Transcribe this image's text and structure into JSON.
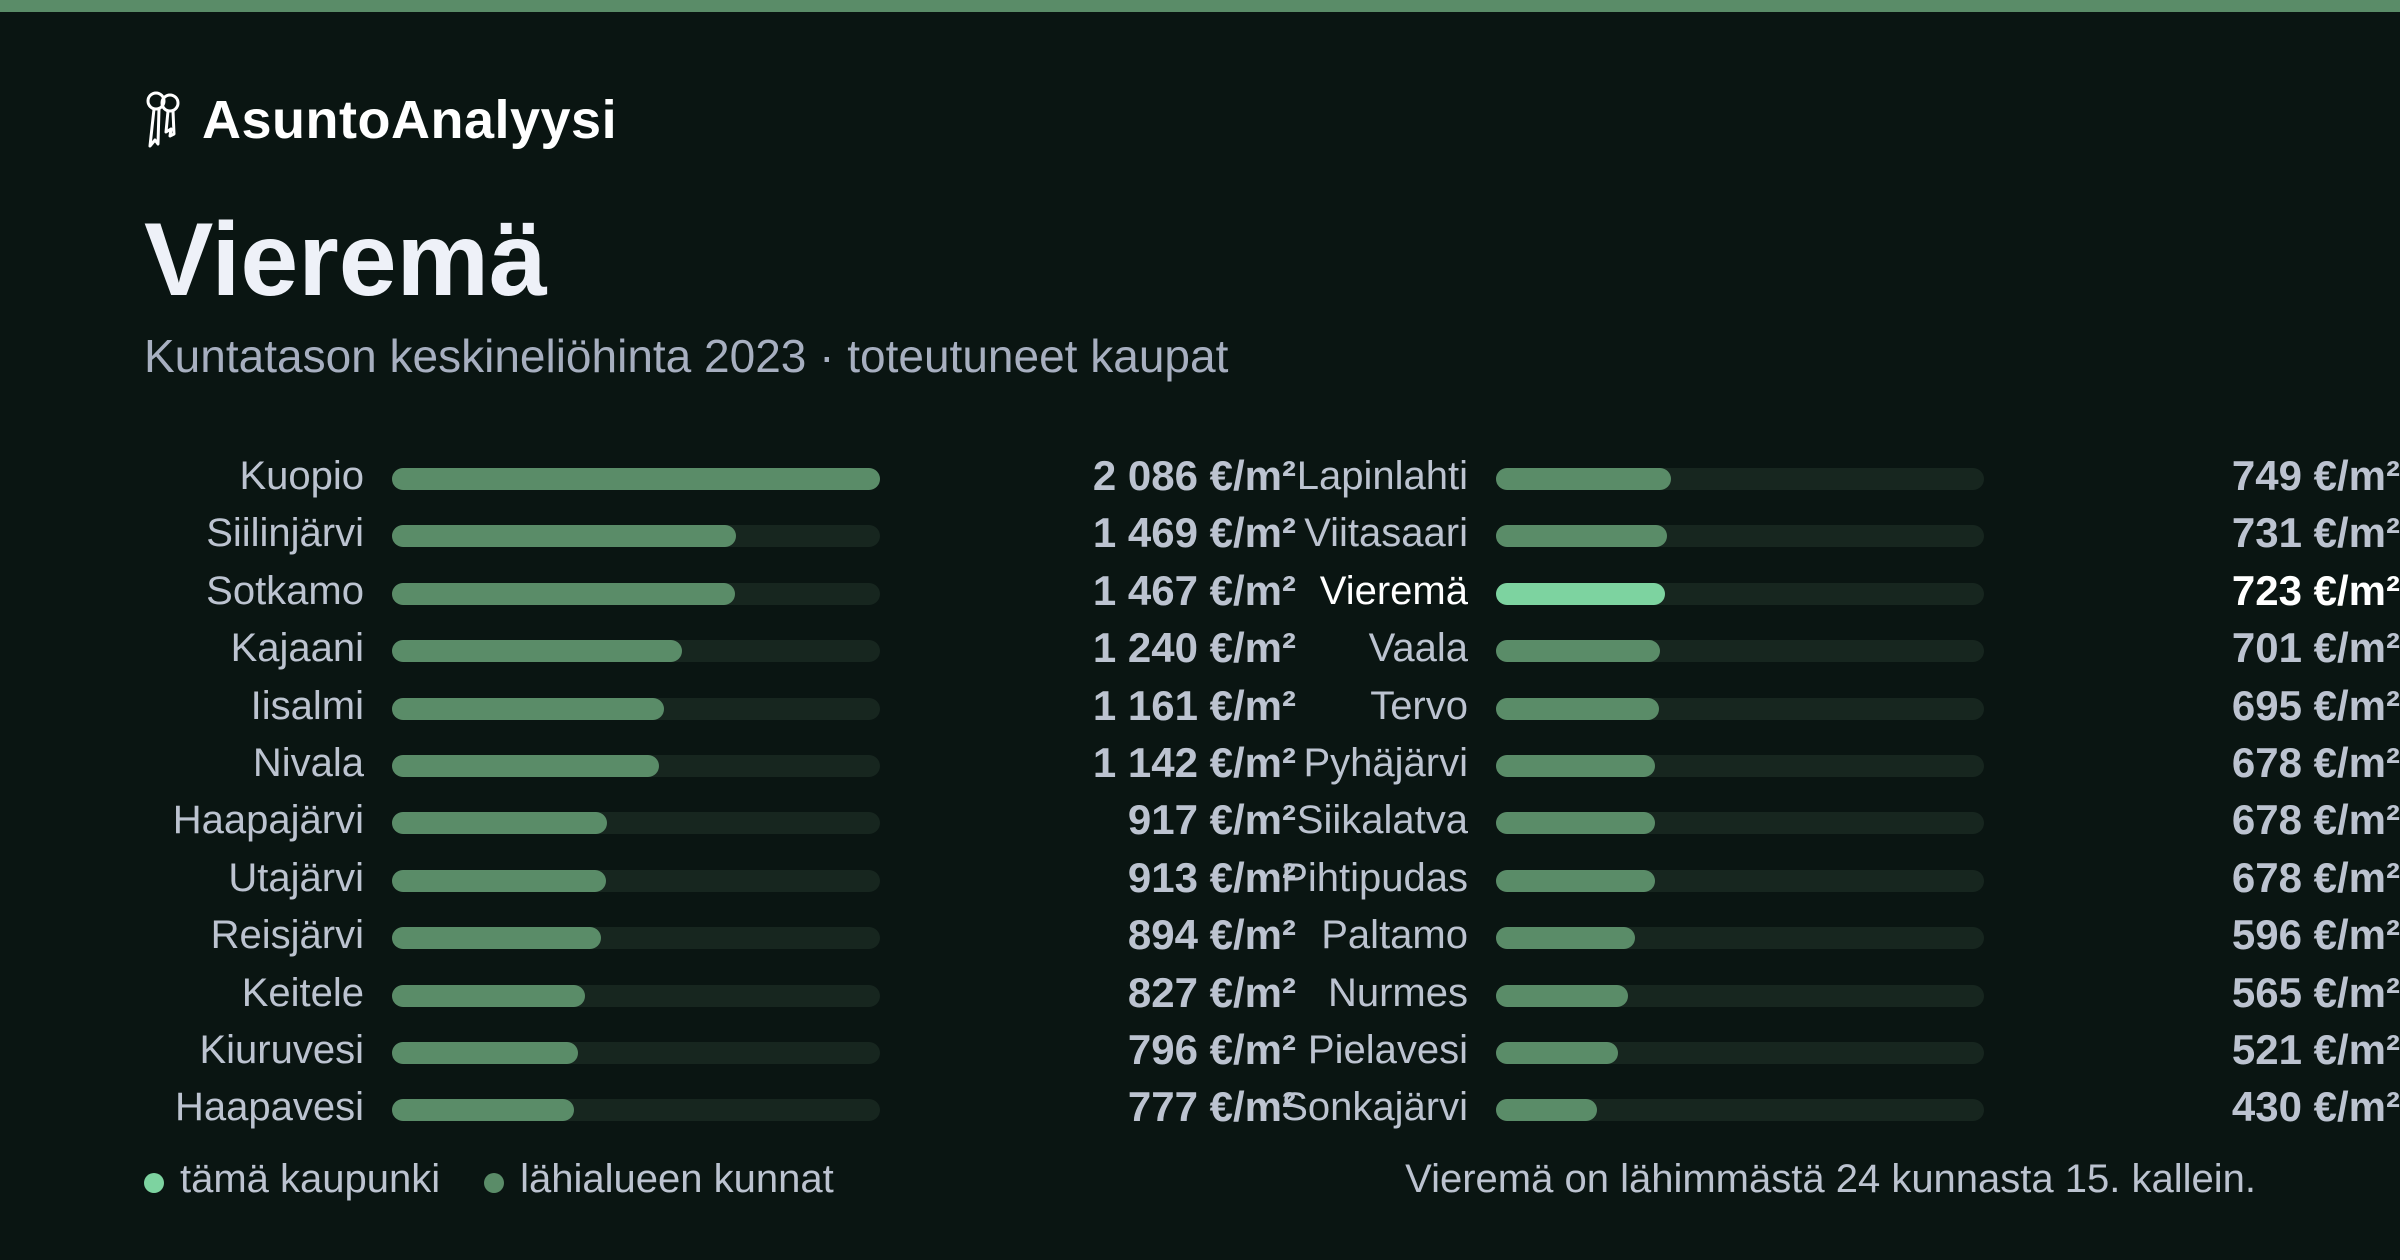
{
  "brand": {
    "name": "AsuntoAnalyysi",
    "icon": "keys-icon"
  },
  "header": {
    "title": "Vieremä",
    "subtitle": "Kuntatason keskineliöhinta 2023 · toteutuneet kaupat"
  },
  "colors": {
    "background": "#0a1512",
    "accent": "#5a8c68",
    "highlight": "#7dd3a0",
    "track": "#17261f",
    "text_muted": "#bcc3d0"
  },
  "chart_data": {
    "type": "bar",
    "orientation": "horizontal",
    "unit": "€/m²",
    "xlim": [
      0,
      2086
    ],
    "highlight": "Vieremä",
    "categories": [
      "Kuopio",
      "Siilinjärvi",
      "Sotkamo",
      "Kajaani",
      "Iisalmi",
      "Nivala",
      "Haapajärvi",
      "Utajärvi",
      "Reisjärvi",
      "Keitele",
      "Kiuruvesi",
      "Haapavesi",
      "Lapinlahti",
      "Viitasaari",
      "Vieremä",
      "Vaala",
      "Tervo",
      "Pyhäjärvi",
      "Siikalatva",
      "Pihtipudas",
      "Paltamo",
      "Nurmes",
      "Pielavesi",
      "Sonkajärvi"
    ],
    "values": [
      2086,
      1469,
      1467,
      1240,
      1161,
      1142,
      917,
      913,
      894,
      827,
      796,
      777,
      749,
      731,
      723,
      701,
      695,
      678,
      678,
      678,
      596,
      565,
      521,
      430
    ],
    "value_labels": [
      "2 086 €/m²",
      "1 469 €/m²",
      "1 467 €/m²",
      "1 240 €/m²",
      "1 161 €/m²",
      "1 142 €/m²",
      "917 €/m²",
      "913 €/m²",
      "894 €/m²",
      "827 €/m²",
      "796 €/m²",
      "777 €/m²",
      "749 €/m²",
      "731 €/m²",
      "723 €/m²",
      "701 €/m²",
      "695 €/m²",
      "678 €/m²",
      "678 €/m²",
      "678 €/m²",
      "596 €/m²",
      "565 €/m²",
      "521 €/m²",
      "430 €/m²"
    ]
  },
  "legend": {
    "items": [
      {
        "label": "tämä kaupunki",
        "color": "#7dd3a0"
      },
      {
        "label": "lähialueen kunnat",
        "color": "#5a8c68"
      }
    ]
  },
  "footnote": "Vieremä on lähimmästä 24 kunnasta 15. kallein."
}
